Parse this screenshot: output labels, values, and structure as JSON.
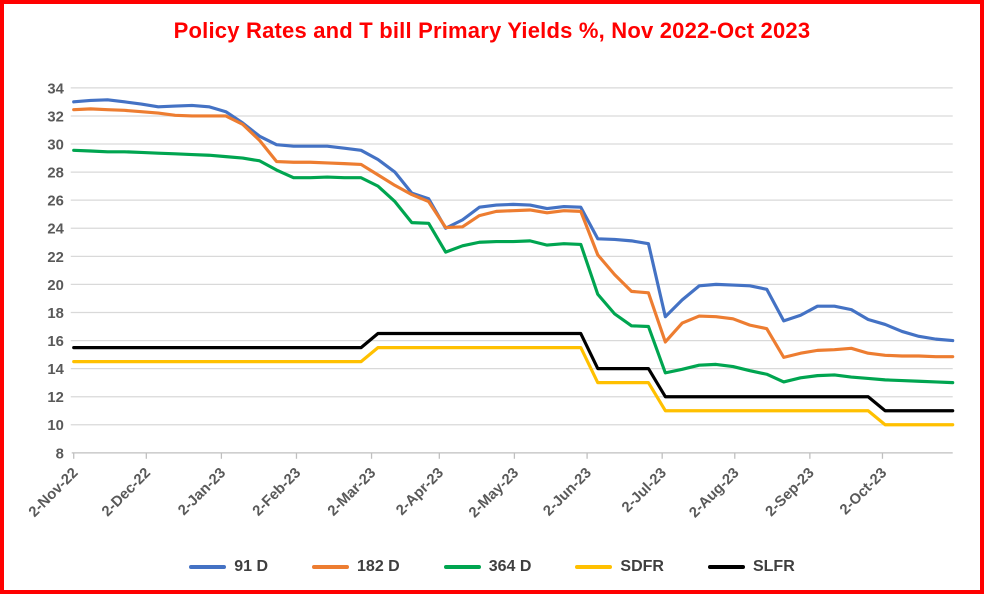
{
  "title": {
    "text": "Policy Rates and T bill Primary Yields %, Nov 2022-Oct 2023",
    "color": "#ff0000"
  },
  "styles": {
    "frame_border_color": "#ff0000",
    "gridline_color": "#d9d9d9",
    "axis_line_color": "#bfbfbf",
    "axis_label_color": "#595959",
    "legend_text_color": "#3f3f3f",
    "background": "#ffffff"
  },
  "chart_data": {
    "type": "line",
    "title": "Policy Rates and T bill Primary Yields %, Nov 2022-Oct 2023",
    "x_unit": "weekly observations, 2-Nov-22 to 31-Oct-23",
    "x_tick_labels": [
      "2-Nov-22",
      "2-Dec-22",
      "2-Jan-23",
      "2-Feb-23",
      "2-Mar-23",
      "2-Apr-23",
      "2-May-23",
      "2-Jun-23",
      "2-Jul-23",
      "2-Aug-23",
      "2-Sep-23",
      "2-Oct-23"
    ],
    "month_tick_day_offsets": [
      0,
      30,
      61,
      92,
      123,
      151,
      182,
      212,
      243,
      273,
      304,
      334
    ],
    "total_days": 363,
    "ylim": [
      8,
      34
    ],
    "y_tick_step": 2,
    "grid": true,
    "legend_position": "bottom",
    "series": [
      {
        "name": "91 D",
        "color": "#4472c4",
        "values": [
          33.0,
          33.1,
          33.15,
          33.0,
          32.85,
          32.65,
          32.7,
          32.75,
          32.65,
          32.3,
          31.5,
          30.55,
          29.95,
          29.85,
          29.85,
          29.85,
          29.7,
          29.55,
          28.9,
          28.0,
          26.5,
          26.1,
          24.0,
          24.6,
          25.5,
          25.65,
          25.7,
          25.65,
          25.4,
          25.55,
          25.5,
          23.25,
          23.2,
          23.1,
          22.9,
          17.7,
          18.9,
          19.9,
          20.0,
          19.95,
          19.9,
          19.65,
          17.4,
          17.8,
          18.45,
          18.45,
          18.2,
          17.5,
          17.15,
          16.65,
          16.3,
          16.1,
          16.0
        ]
      },
      {
        "name": "182 D",
        "color": "#ed7d31",
        "values": [
          32.45,
          32.5,
          32.45,
          32.4,
          32.3,
          32.2,
          32.05,
          32.0,
          32.0,
          32.0,
          31.4,
          30.25,
          28.75,
          28.7,
          28.7,
          28.65,
          28.6,
          28.55,
          27.8,
          27.05,
          26.4,
          25.9,
          24.05,
          24.1,
          24.9,
          25.2,
          25.25,
          25.3,
          25.1,
          25.25,
          25.2,
          22.1,
          20.7,
          19.5,
          19.4,
          15.9,
          17.25,
          17.75,
          17.7,
          17.55,
          17.1,
          16.85,
          14.8,
          15.1,
          15.3,
          15.35,
          15.45,
          15.1,
          14.95,
          14.9,
          14.9,
          14.85,
          14.85
        ]
      },
      {
        "name": "364 D",
        "color": "#00a550",
        "values": [
          29.55,
          29.5,
          29.45,
          29.45,
          29.4,
          29.35,
          29.3,
          29.25,
          29.2,
          29.1,
          29.0,
          28.8,
          28.15,
          27.6,
          27.6,
          27.65,
          27.6,
          27.6,
          27.0,
          25.9,
          24.4,
          24.35,
          22.3,
          22.75,
          23.0,
          23.05,
          23.05,
          23.1,
          22.8,
          22.9,
          22.85,
          19.3,
          17.9,
          17.05,
          17.0,
          13.7,
          13.95,
          14.25,
          14.3,
          14.15,
          13.85,
          13.6,
          13.05,
          13.35,
          13.5,
          13.55,
          13.4,
          13.3,
          13.2,
          13.15,
          13.1,
          13.05,
          13.0
        ]
      },
      {
        "name": "SDFR",
        "color": "#ffc000",
        "values": [
          14.5,
          14.5,
          14.5,
          14.5,
          14.5,
          14.5,
          14.5,
          14.5,
          14.5,
          14.5,
          14.5,
          14.5,
          14.5,
          14.5,
          14.5,
          14.5,
          14.5,
          14.5,
          15.5,
          15.5,
          15.5,
          15.5,
          15.5,
          15.5,
          15.5,
          15.5,
          15.5,
          15.5,
          15.5,
          15.5,
          15.5,
          13.0,
          13.0,
          13.0,
          13.0,
          11.0,
          11.0,
          11.0,
          11.0,
          11.0,
          11.0,
          11.0,
          11.0,
          11.0,
          11.0,
          11.0,
          11.0,
          11.0,
          10.0,
          10.0,
          10.0,
          10.0,
          10.0
        ]
      },
      {
        "name": "SLFR",
        "color": "#000000",
        "values": [
          15.5,
          15.5,
          15.5,
          15.5,
          15.5,
          15.5,
          15.5,
          15.5,
          15.5,
          15.5,
          15.5,
          15.5,
          15.5,
          15.5,
          15.5,
          15.5,
          15.5,
          15.5,
          16.5,
          16.5,
          16.5,
          16.5,
          16.5,
          16.5,
          16.5,
          16.5,
          16.5,
          16.5,
          16.5,
          16.5,
          16.5,
          14.0,
          14.0,
          14.0,
          14.0,
          12.0,
          12.0,
          12.0,
          12.0,
          12.0,
          12.0,
          12.0,
          12.0,
          12.0,
          12.0,
          12.0,
          12.0,
          12.0,
          11.0,
          11.0,
          11.0,
          11.0,
          11.0
        ]
      }
    ]
  }
}
